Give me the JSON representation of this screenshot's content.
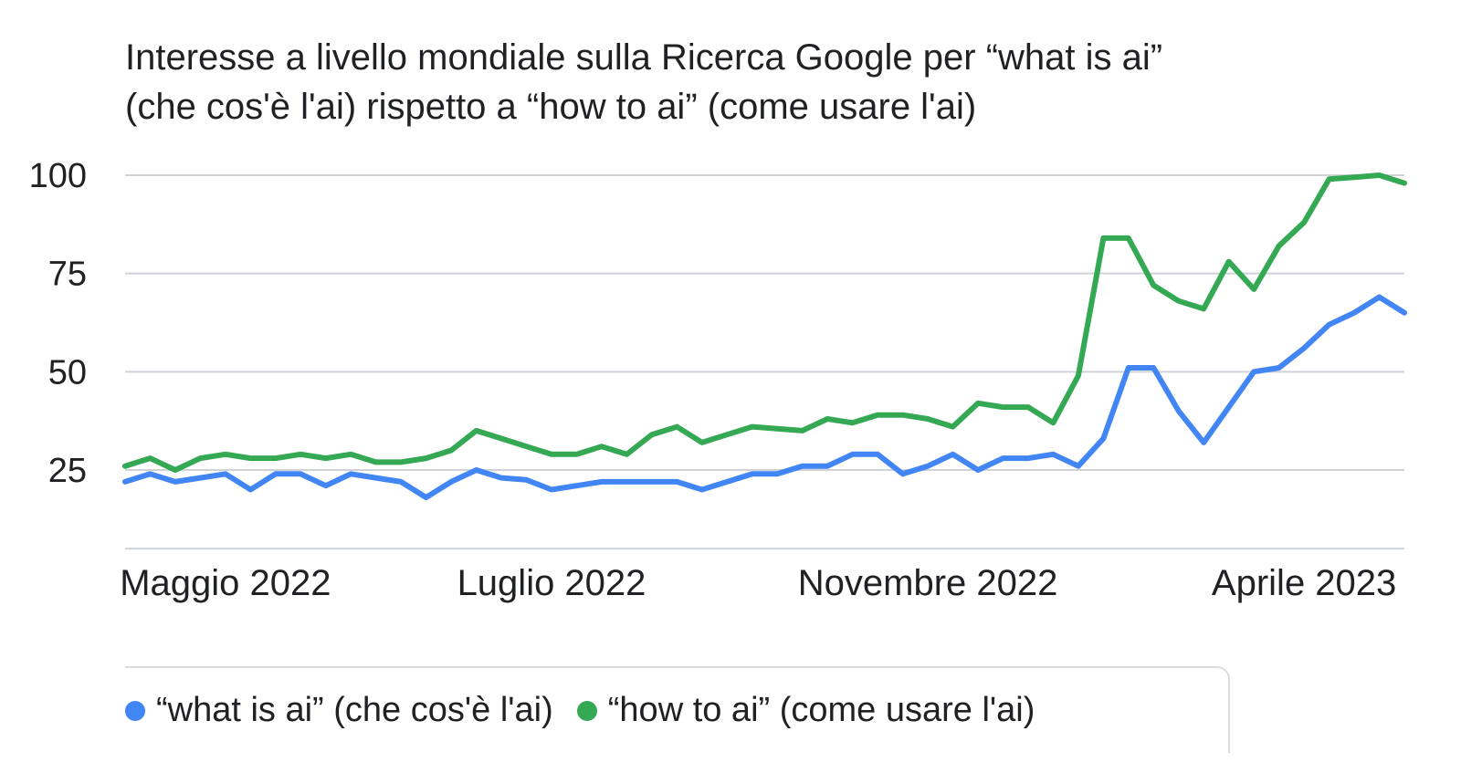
{
  "chart_data": {
    "type": "line",
    "title_lines": [
      "Interesse a livello mondiale sulla Ricerca Google per “what is ai”",
      "(che cos'è l'ai) rispetto a “how to ai” (come usare l'ai)"
    ],
    "ylim": [
      5,
      100
    ],
    "yticks": [
      25,
      50,
      75,
      100
    ],
    "x_tick_labels": [
      {
        "label": "Maggio 2022",
        "index": 4
      },
      {
        "label": "Luglio 2022",
        "index": 17
      },
      {
        "label": "Novembre 2022",
        "index": 32
      },
      {
        "label": "Aprile 2023",
        "index": 47
      }
    ],
    "series": [
      {
        "name": "“what is ai” (che cos'è l'ai)",
        "color": "#4285f4",
        "values": [
          22,
          24,
          22,
          23,
          24,
          20,
          24,
          24,
          21,
          24,
          23,
          22,
          18,
          22,
          25,
          23,
          22.5,
          20,
          21,
          22,
          22,
          22,
          22,
          20,
          22,
          24,
          24,
          26,
          26,
          29,
          29,
          24,
          26,
          29,
          25,
          28,
          28,
          29,
          26,
          33,
          51,
          51,
          40,
          32,
          41,
          50,
          51,
          56,
          62,
          65,
          69,
          65
        ]
      },
      {
        "name": "“how to ai” (come usare l'ai)",
        "color": "#34a853",
        "values": [
          26,
          28,
          25,
          28,
          29,
          28,
          28,
          29,
          28,
          29,
          27,
          27,
          28,
          30,
          35,
          33,
          31,
          29,
          29,
          31,
          29,
          34,
          36,
          32,
          34,
          36,
          35.5,
          35,
          38,
          37,
          39,
          39,
          38,
          36,
          42,
          41,
          41,
          37,
          49,
          84,
          84,
          72,
          68,
          66,
          78,
          71,
          82,
          88,
          99,
          99.5,
          100,
          98
        ]
      }
    ]
  }
}
